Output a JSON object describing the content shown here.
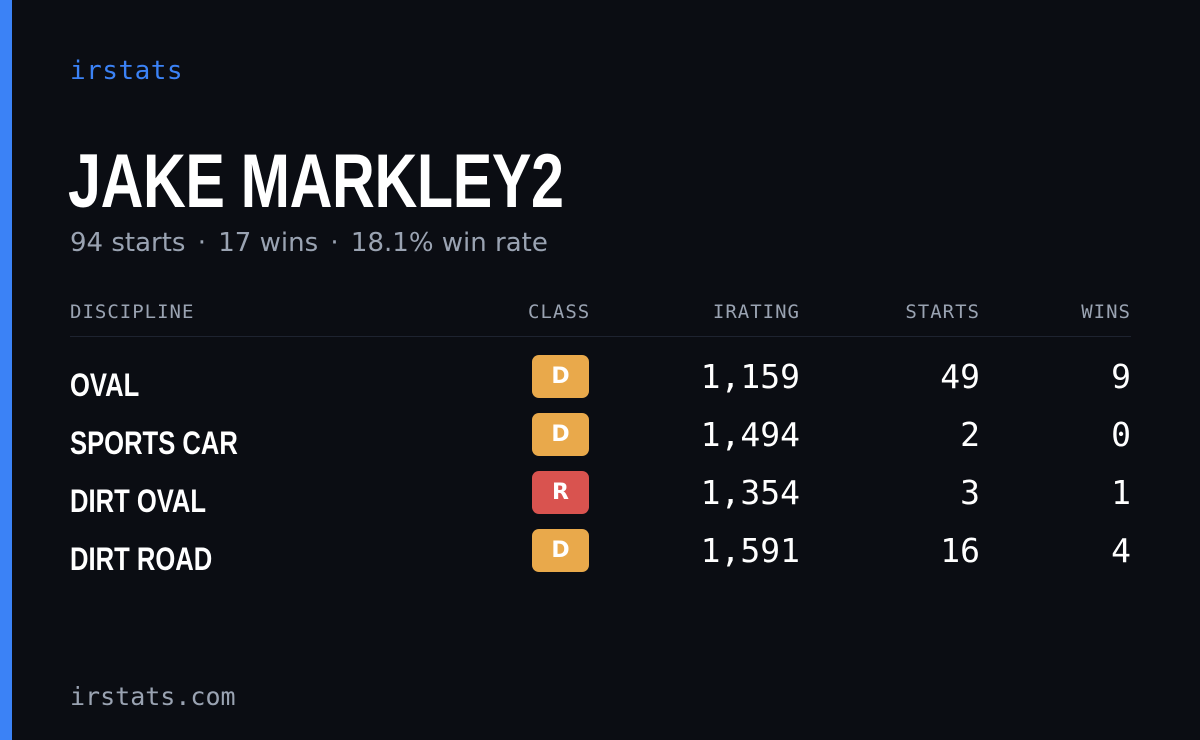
{
  "brand": "irstats",
  "driver": {
    "name": "JAKE MARKLEY2",
    "starts_text": "94 starts",
    "wins_text": "17 wins",
    "win_rate_text": "18.1% win rate",
    "separator": "·"
  },
  "table": {
    "headers": {
      "discipline": "DISCIPLINE",
      "class": "CLASS",
      "irating": "IRATING",
      "starts": "STARTS",
      "wins": "WINS"
    },
    "rows": [
      {
        "discipline": "OVAL",
        "class": "D",
        "class_color": "#e9a94b",
        "irating": "1,159",
        "starts": "49",
        "wins": "9"
      },
      {
        "discipline": "SPORTS CAR",
        "class": "D",
        "class_color": "#e9a94b",
        "irating": "1,494",
        "starts": "2",
        "wins": "0"
      },
      {
        "discipline": "DIRT OVAL",
        "class": "R",
        "class_color": "#d9534f",
        "irating": "1,354",
        "starts": "3",
        "wins": "1"
      },
      {
        "discipline": "DIRT ROAD",
        "class": "D",
        "class_color": "#e9a94b",
        "irating": "1,591",
        "starts": "16",
        "wins": "4"
      }
    ]
  },
  "footer": "irstats.com",
  "colors": {
    "accent": "#3b82f6",
    "background": "#0b0d13",
    "muted_text": "#9aa3b2",
    "class_d": "#e9a94b",
    "class_r": "#d9534f"
  }
}
